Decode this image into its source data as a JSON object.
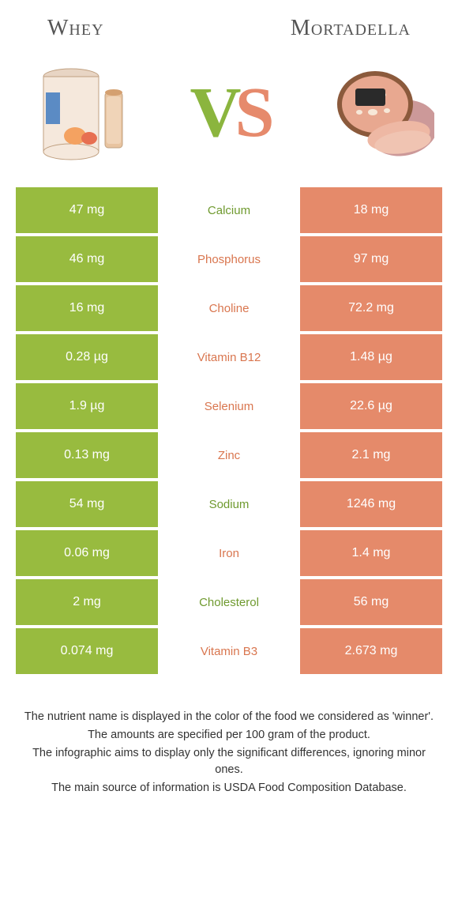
{
  "colors": {
    "left": "#98bb3f",
    "right": "#e58a6a",
    "left_text": "#6f9a2f",
    "right_text": "#d9764f",
    "white": "#ffffff"
  },
  "header": {
    "left_title": "Whey",
    "right_title": "Mortadella"
  },
  "vs": {
    "v": "V",
    "s": "S"
  },
  "rows": [
    {
      "nutrient": "Calcium",
      "left": "47 mg",
      "right": "18 mg",
      "winner": "left"
    },
    {
      "nutrient": "Phosphorus",
      "left": "46 mg",
      "right": "97 mg",
      "winner": "right"
    },
    {
      "nutrient": "Choline",
      "left": "16 mg",
      "right": "72.2 mg",
      "winner": "right"
    },
    {
      "nutrient": "Vitamin B12",
      "left": "0.28 µg",
      "right": "1.48 µg",
      "winner": "right"
    },
    {
      "nutrient": "Selenium",
      "left": "1.9 µg",
      "right": "22.6 µg",
      "winner": "right"
    },
    {
      "nutrient": "Zinc",
      "left": "0.13 mg",
      "right": "2.1 mg",
      "winner": "right"
    },
    {
      "nutrient": "Sodium",
      "left": "54 mg",
      "right": "1246 mg",
      "winner": "left"
    },
    {
      "nutrient": "Iron",
      "left": "0.06 mg",
      "right": "1.4 mg",
      "winner": "right"
    },
    {
      "nutrient": "Cholesterol",
      "left": "2 mg",
      "right": "56 mg",
      "winner": "left"
    },
    {
      "nutrient": "Vitamin B3",
      "left": "0.074 mg",
      "right": "2.673 mg",
      "winner": "right"
    }
  ],
  "footer": {
    "line1": "The nutrient name is displayed in the color of the food we considered as 'winner'.",
    "line2": "The amounts are specified per 100 gram of the product.",
    "line3": "The infographic aims to display only the significant differences, ignoring minor ones.",
    "line4": "The main source of information is USDA Food Composition Database."
  }
}
